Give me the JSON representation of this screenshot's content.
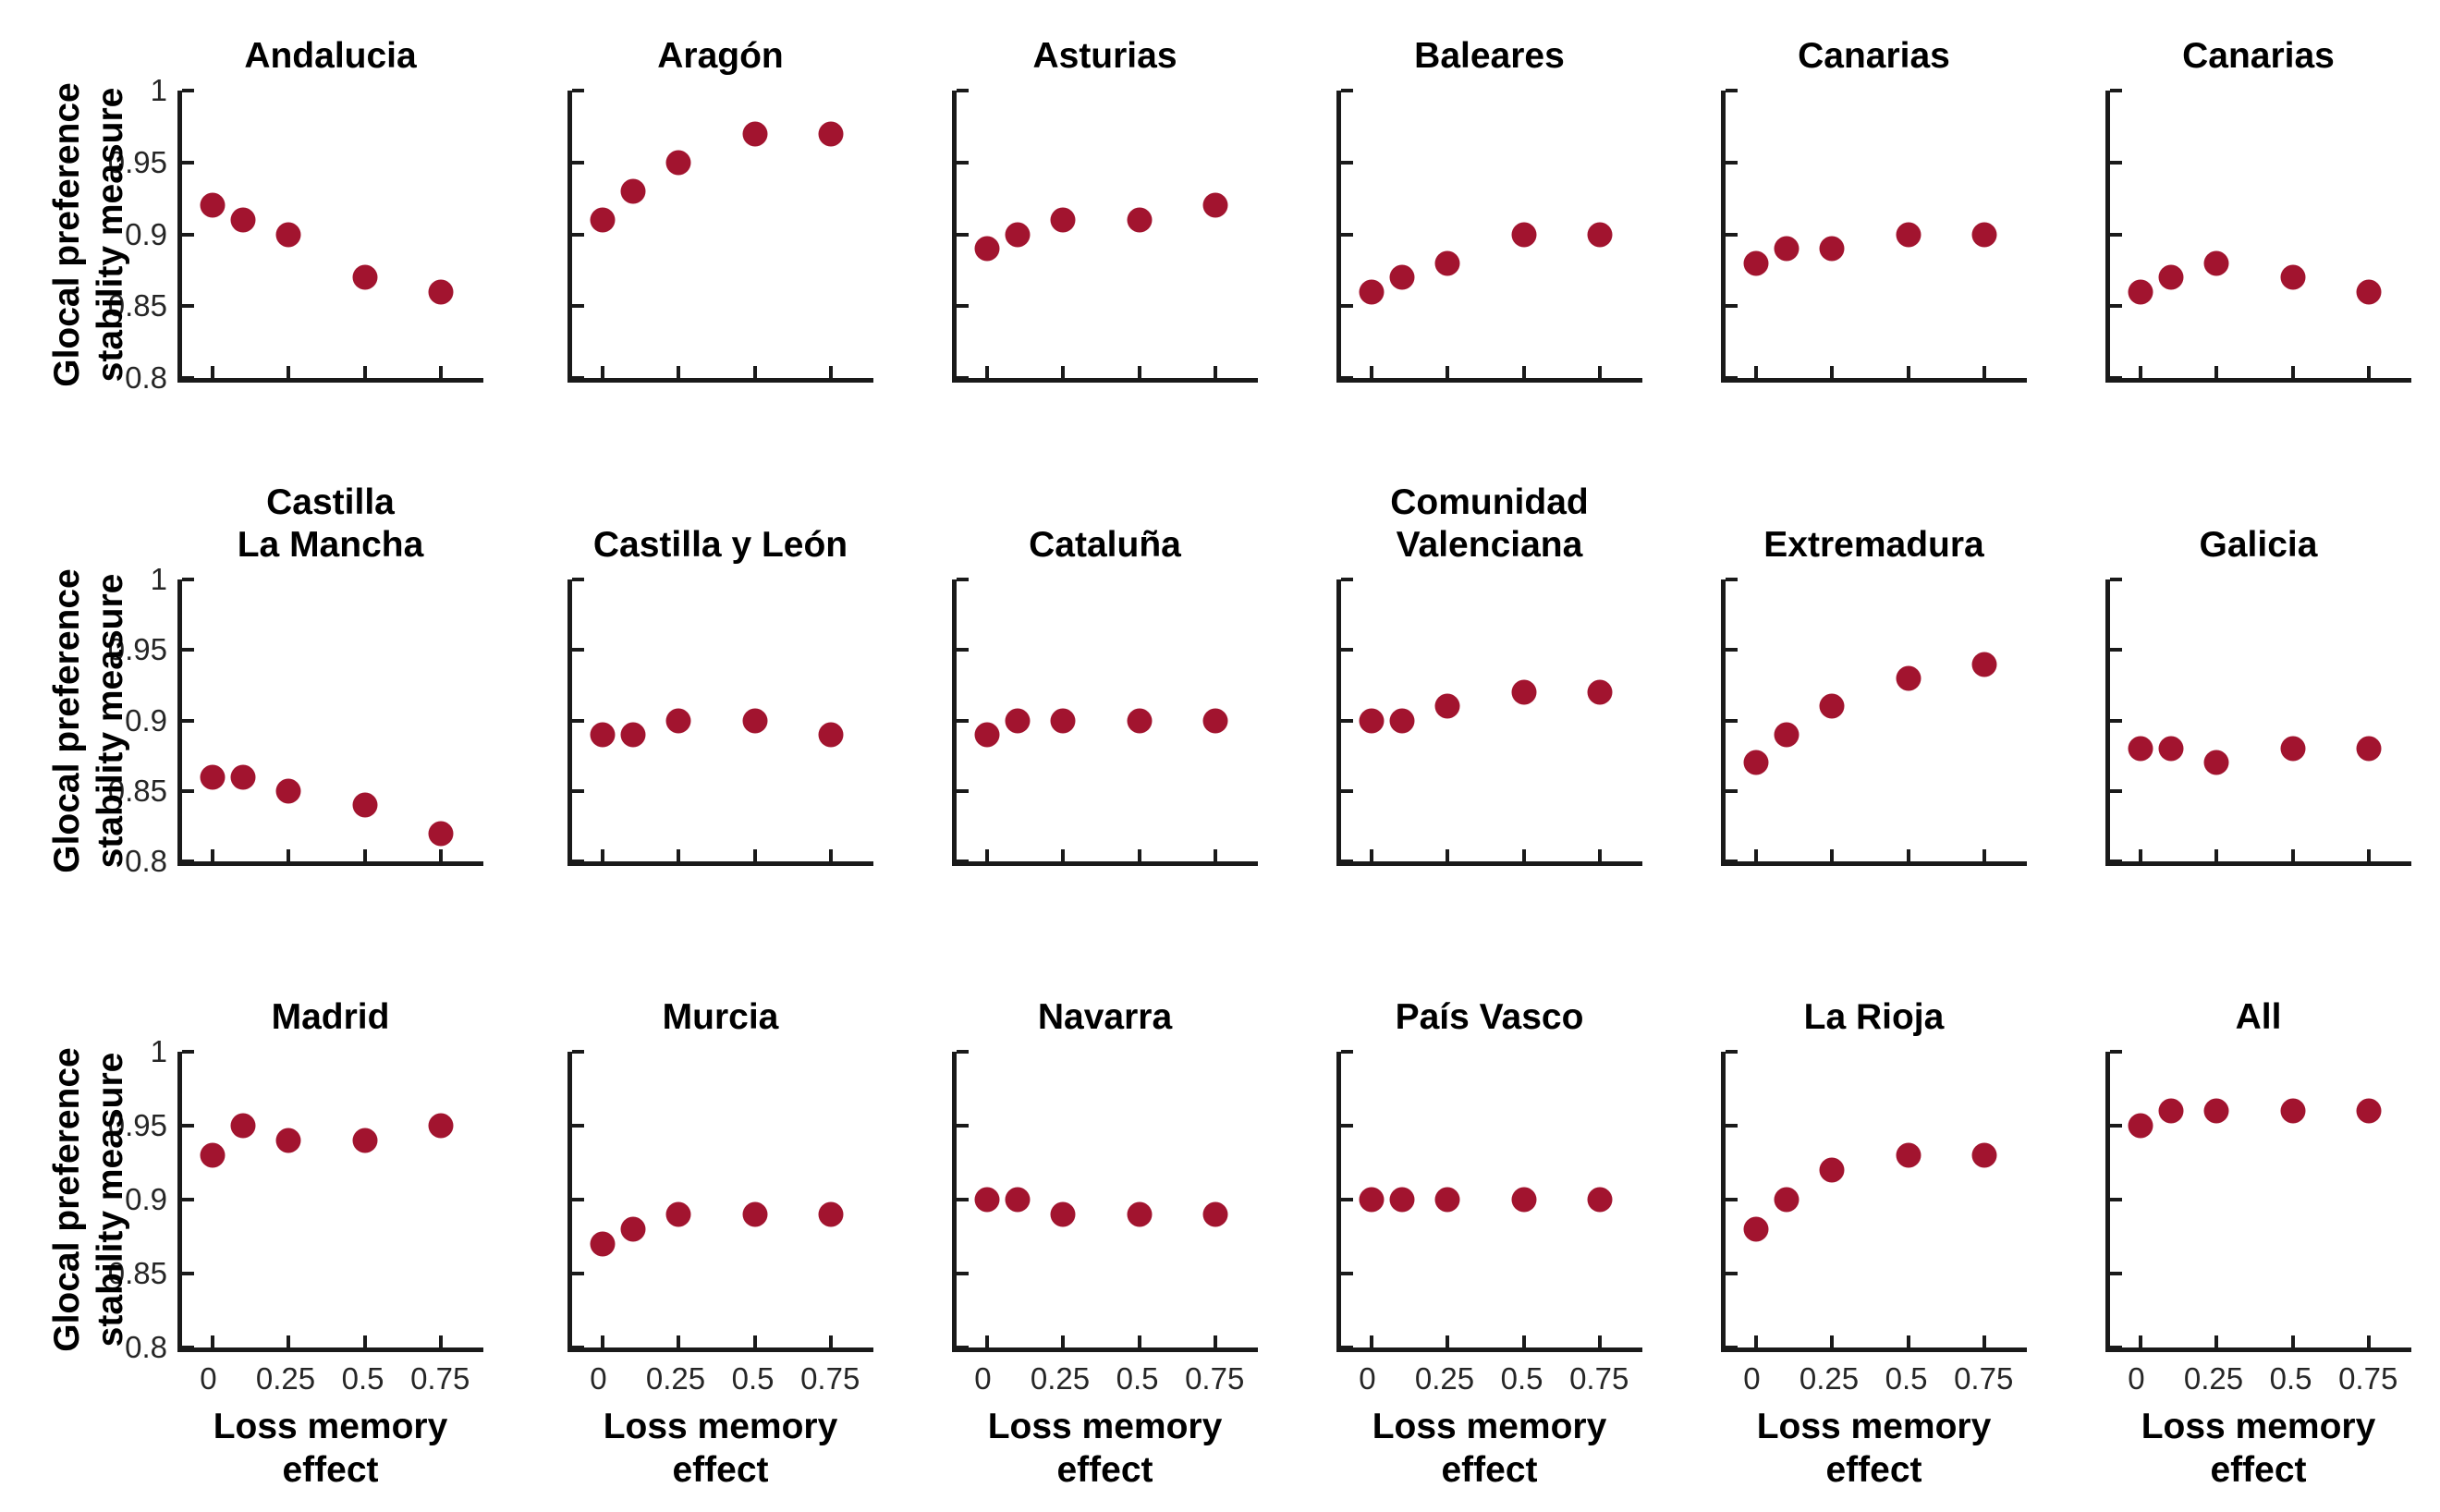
{
  "chart_data": {
    "type": "scatter",
    "layout": {
      "rows": 3,
      "cols": 6,
      "grid": false,
      "legend": "none",
      "marker_color": "#A2142F",
      "axis_color": "#1a1a1a"
    },
    "x": [
      0,
      0.1,
      0.25,
      0.5,
      0.75
    ],
    "xlim": [
      -0.1,
      0.89
    ],
    "ylim": [
      0.8,
      1.0
    ],
    "x_tick_values": [
      0,
      0.25,
      0.5,
      0.75
    ],
    "x_tick_labels": [
      "0",
      "0.25",
      "0.5",
      "0.75"
    ],
    "y_tick_values": [
      1,
      0.95,
      0.9,
      0.85,
      0.8
    ],
    "y_tick_labels": [
      "1",
      "0.95",
      "0.9",
      "0.85",
      "0.8"
    ],
    "xlabel": "Loss memory effect",
    "xlabel_lines": [
      "Loss memory",
      "effect"
    ],
    "ylabel": "Glocal preference stability measure",
    "ylabel_lines": [
      "Glocal preference",
      "stability measure"
    ],
    "subplots": [
      {
        "title": "Andalucia",
        "title_lines": [
          "Andalucia"
        ],
        "y": [
          0.92,
          0.91,
          0.9,
          0.87,
          0.86
        ]
      },
      {
        "title": "Aragón",
        "title_lines": [
          "Aragón"
        ],
        "y": [
          0.91,
          0.93,
          0.95,
          0.97,
          0.97
        ]
      },
      {
        "title": "Asturias",
        "title_lines": [
          "Asturias"
        ],
        "y": [
          0.89,
          0.9,
          0.91,
          0.91,
          0.92
        ]
      },
      {
        "title": "Baleares",
        "title_lines": [
          "Baleares"
        ],
        "y": [
          0.86,
          0.87,
          0.88,
          0.9,
          0.9
        ]
      },
      {
        "title": "Canarias",
        "title_lines": [
          "Canarias"
        ],
        "y": [
          0.88,
          0.89,
          0.89,
          0.9,
          0.9
        ]
      },
      {
        "title": "Canarias",
        "title_lines": [
          "Canarias"
        ],
        "y": [
          0.86,
          0.87,
          0.88,
          0.87,
          0.86
        ]
      },
      {
        "title": "Castilla La Mancha",
        "title_lines": [
          "Castilla",
          "La Mancha"
        ],
        "y": [
          0.86,
          0.86,
          0.85,
          0.84,
          0.82
        ]
      },
      {
        "title": "Castilla y León",
        "title_lines": [
          "Castilla y León"
        ],
        "y": [
          0.89,
          0.89,
          0.9,
          0.9,
          0.89
        ]
      },
      {
        "title": "Cataluña",
        "title_lines": [
          "Cataluña"
        ],
        "y": [
          0.89,
          0.9,
          0.9,
          0.9,
          0.9
        ]
      },
      {
        "title": "Comunidad Valenciana",
        "title_lines": [
          "Comunidad",
          "Valenciana"
        ],
        "y": [
          0.9,
          0.9,
          0.91,
          0.92,
          0.92
        ]
      },
      {
        "title": "Extremadura",
        "title_lines": [
          "Extremadura"
        ],
        "y": [
          0.87,
          0.89,
          0.91,
          0.93,
          0.94
        ]
      },
      {
        "title": "Galicia",
        "title_lines": [
          "Galicia"
        ],
        "y": [
          0.88,
          0.88,
          0.87,
          0.88,
          0.88
        ]
      },
      {
        "title": "Madrid",
        "title_lines": [
          "Madrid"
        ],
        "y": [
          0.93,
          0.95,
          0.94,
          0.94,
          0.95
        ]
      },
      {
        "title": "Murcia",
        "title_lines": [
          "Murcia"
        ],
        "y": [
          0.87,
          0.88,
          0.89,
          0.89,
          0.89
        ]
      },
      {
        "title": "Navarra",
        "title_lines": [
          "Navarra"
        ],
        "y": [
          0.9,
          0.9,
          0.89,
          0.89,
          0.89
        ]
      },
      {
        "title": "País Vasco",
        "title_lines": [
          "País Vasco"
        ],
        "y": [
          0.9,
          0.9,
          0.9,
          0.9,
          0.9
        ]
      },
      {
        "title": "La Rioja",
        "title_lines": [
          "La Rioja"
        ],
        "y": [
          0.88,
          0.9,
          0.92,
          0.93,
          0.93
        ]
      },
      {
        "title": "All",
        "title_lines": [
          "All"
        ],
        "y": [
          0.95,
          0.96,
          0.96,
          0.96,
          0.96
        ]
      }
    ]
  }
}
